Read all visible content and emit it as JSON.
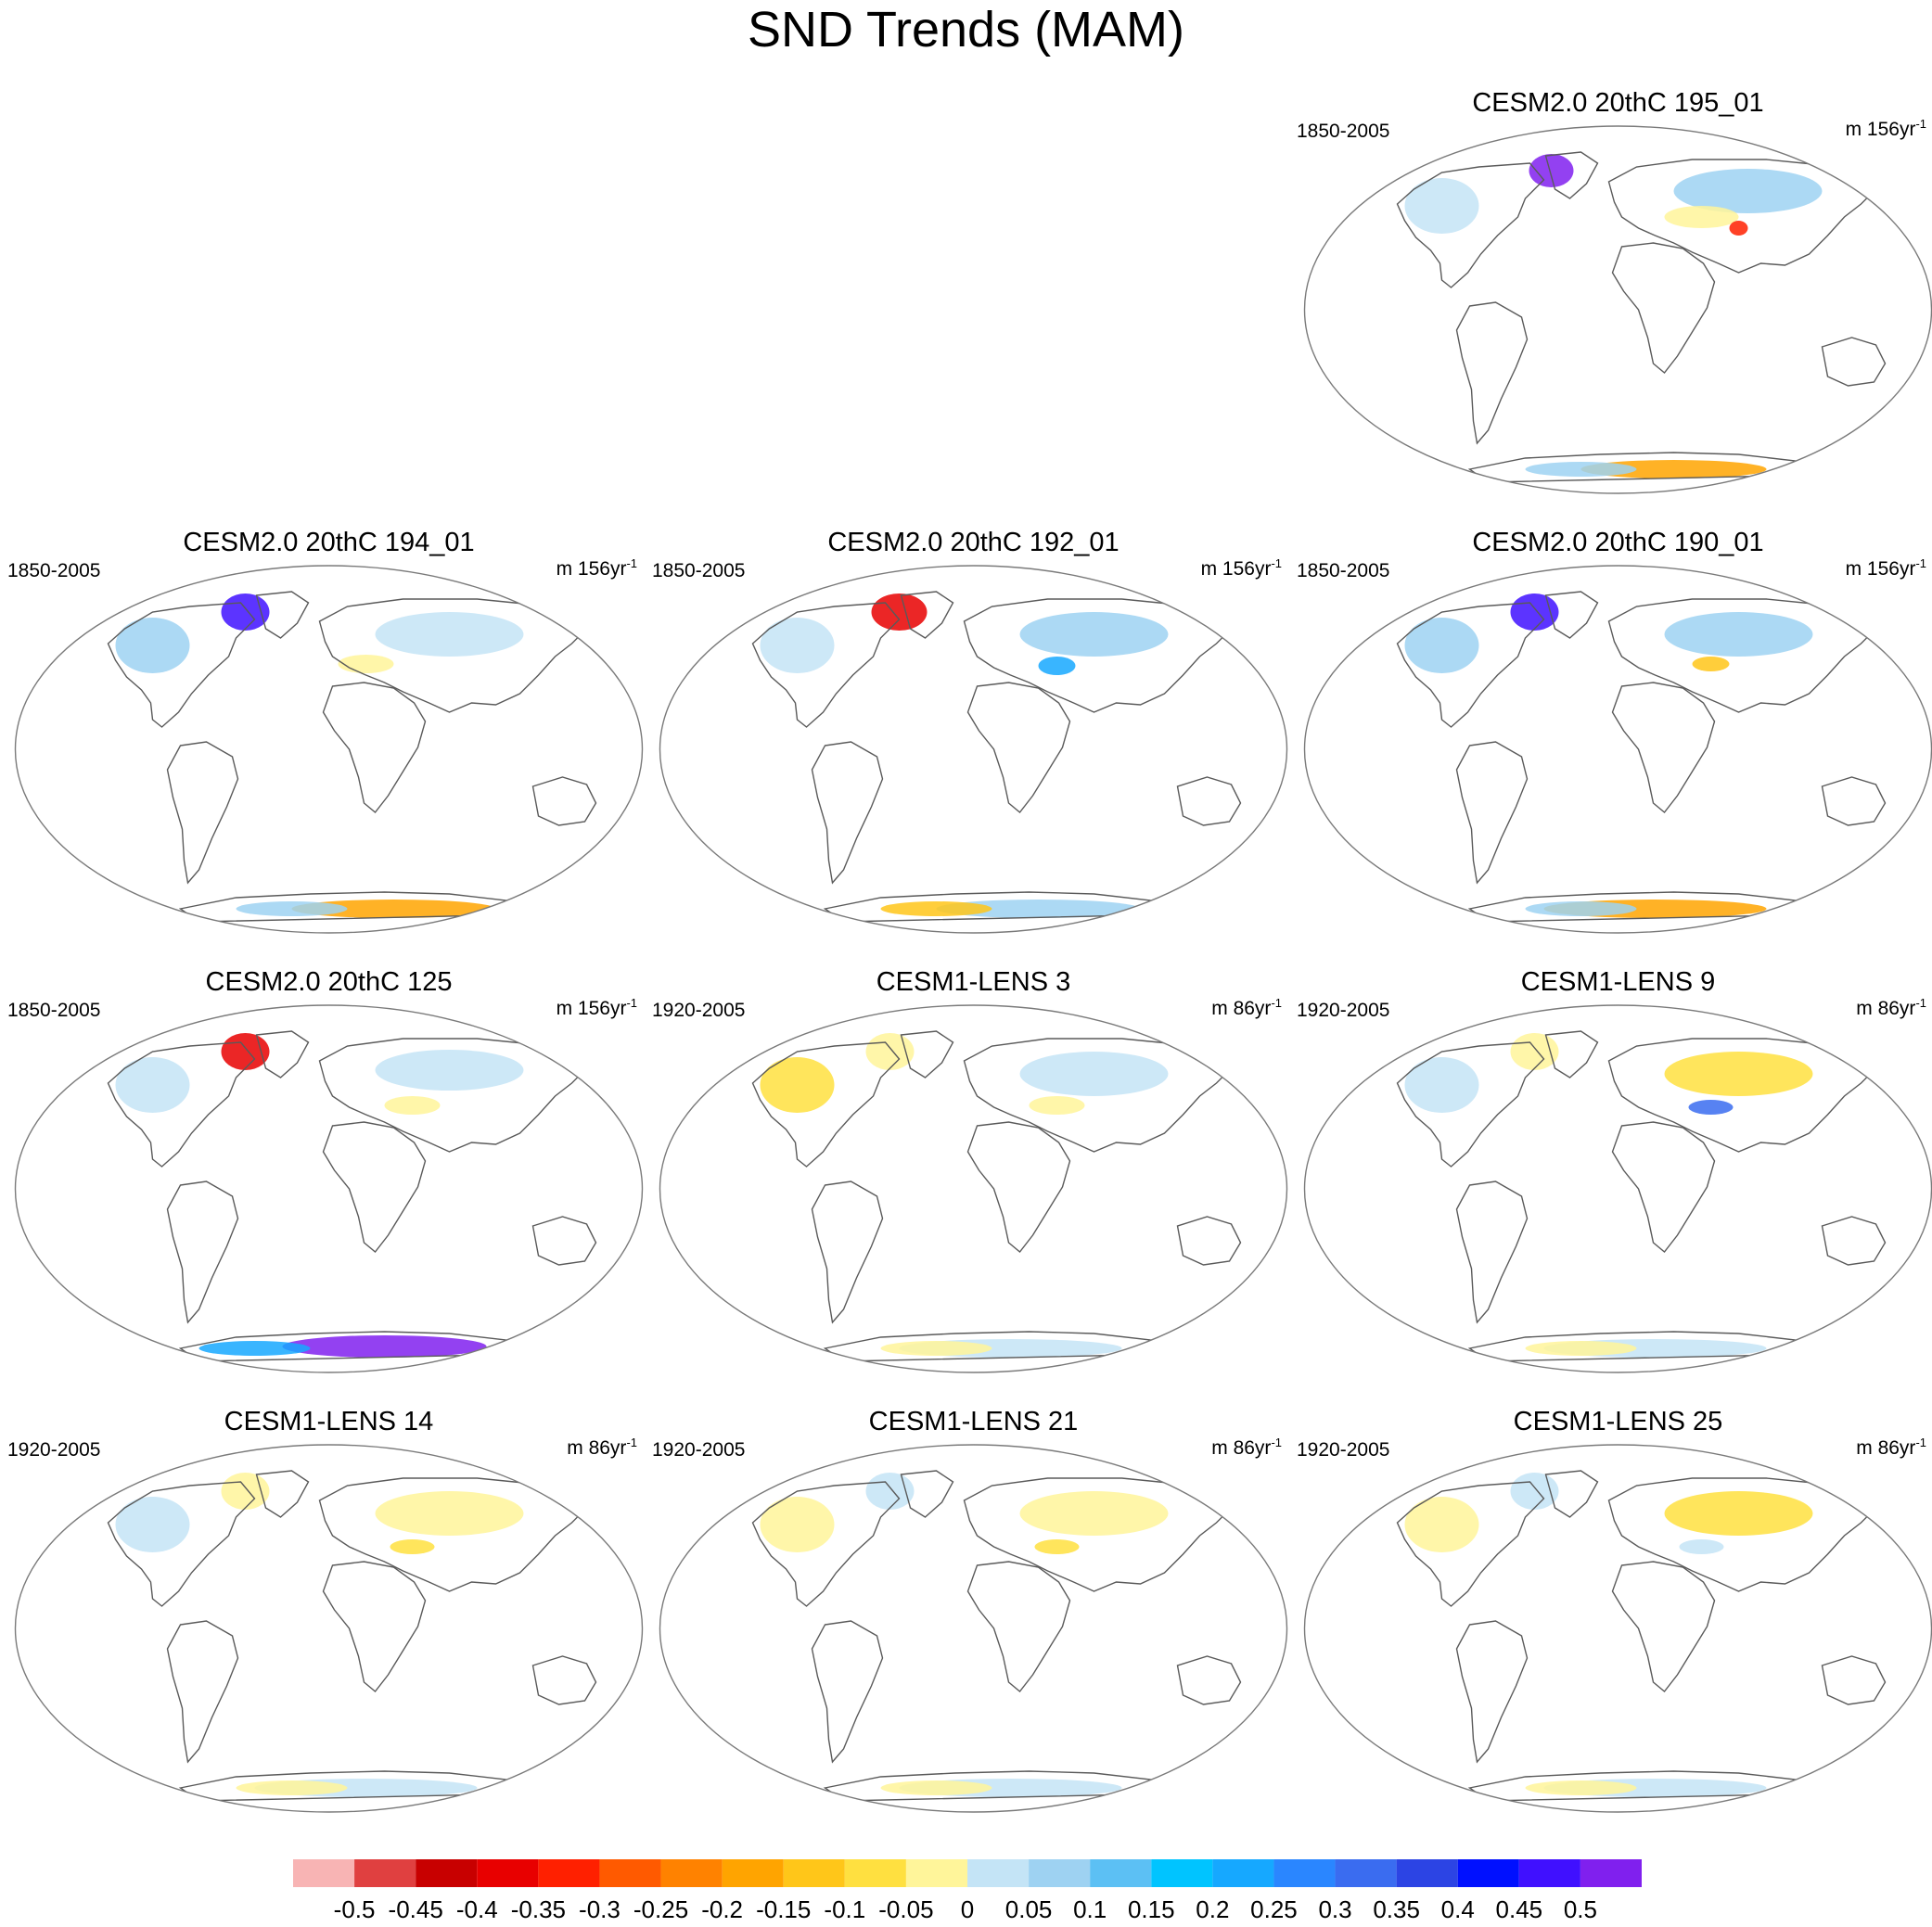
{
  "title": "SND Trends (MAM)",
  "chart_data": {
    "type": "heatmap",
    "projection": "global map (Robinson-like ellipse)",
    "description_of_fields": "spatial maps of snow depth trend; values shown only by color",
    "panels": [
      {
        "title": "CESM2.0 20thC 195_01",
        "period": "1850-2005",
        "units_prefix": "m 156yr",
        "units_exp": "-1",
        "row": 0,
        "col": 2
      },
      {
        "title": "CESM2.0 20thC 194_01",
        "period": "1850-2005",
        "units_prefix": "m 156yr",
        "units_exp": "-1",
        "row": 1,
        "col": 0
      },
      {
        "title": "CESM2.0 20thC 192_01",
        "period": "1850-2005",
        "units_prefix": "m 156yr",
        "units_exp": "-1",
        "row": 1,
        "col": 1
      },
      {
        "title": "CESM2.0 20thC 190_01",
        "period": "1850-2005",
        "units_prefix": "m 156yr",
        "units_exp": "-1",
        "row": 1,
        "col": 2
      },
      {
        "title": "CESM2.0 20thC 125",
        "period": "1850-2005",
        "units_prefix": "m 156yr",
        "units_exp": "-1",
        "row": 2,
        "col": 0
      },
      {
        "title": "CESM1-LENS 3",
        "period": "1920-2005",
        "units_prefix": "m 86yr",
        "units_exp": "-1",
        "row": 2,
        "col": 1
      },
      {
        "title": "CESM1-LENS 9",
        "period": "1920-2005",
        "units_prefix": "m 86yr",
        "units_exp": "-1",
        "row": 2,
        "col": 2
      },
      {
        "title": "CESM1-LENS 14",
        "period": "1920-2005",
        "units_prefix": "m 86yr",
        "units_exp": "-1",
        "row": 3,
        "col": 0
      },
      {
        "title": "CESM1-LENS 21",
        "period": "1920-2005",
        "units_prefix": "m 86yr",
        "units_exp": "-1",
        "row": 3,
        "col": 1
      },
      {
        "title": "CESM1-LENS 25",
        "period": "1920-2005",
        "units_prefix": "m 86yr",
        "units_exp": "-1",
        "row": 3,
        "col": 2
      }
    ],
    "colorbar": {
      "tick_labels": [
        "-0.5",
        "-0.45",
        "-0.4",
        "-0.35",
        "-0.3",
        "-0.25",
        "-0.2",
        "-0.15",
        "-0.1",
        "-0.05",
        "0",
        "0.05",
        "0.1",
        "0.15",
        "0.2",
        "0.25",
        "0.3",
        "0.35",
        "0.4",
        "0.45",
        "0.5"
      ],
      "colors": [
        "#f8b4b4",
        "#e04040",
        "#c80000",
        "#e80000",
        "#ff2000",
        "#ff5a00",
        "#ff8200",
        "#ffa400",
        "#ffc619",
        "#ffe040",
        "#fff59a",
        "#c4e4f6",
        "#9ed2f2",
        "#5cc0f4",
        "#00c4ff",
        "#16a8ff",
        "#2a86ff",
        "#3a6cf0",
        "#2c44e4",
        "#0010ff",
        "#4010ff",
        "#8020ee"
      ]
    },
    "region_colors": {
      "land": "#ffffff",
      "coast": "#5a5a5a",
      "border": "#7a7a7a"
    }
  }
}
